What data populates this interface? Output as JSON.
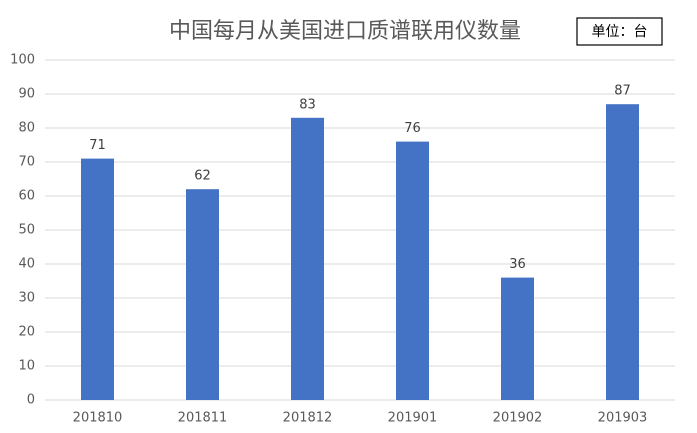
{
  "chart_data": {
    "type": "bar",
    "title": "中国每月从美国进口质谱联用仪数量",
    "unit_note": "单位：台",
    "categories": [
      "201810",
      "201811",
      "201812",
      "201901",
      "201902",
      "201903"
    ],
    "values": [
      71,
      62,
      83,
      76,
      36,
      87
    ],
    "color": "#4472c4",
    "ylim": [
      0,
      100
    ],
    "yticks": [
      0,
      10,
      20,
      30,
      40,
      50,
      60,
      70,
      80,
      90,
      100
    ],
    "grid": true
  }
}
